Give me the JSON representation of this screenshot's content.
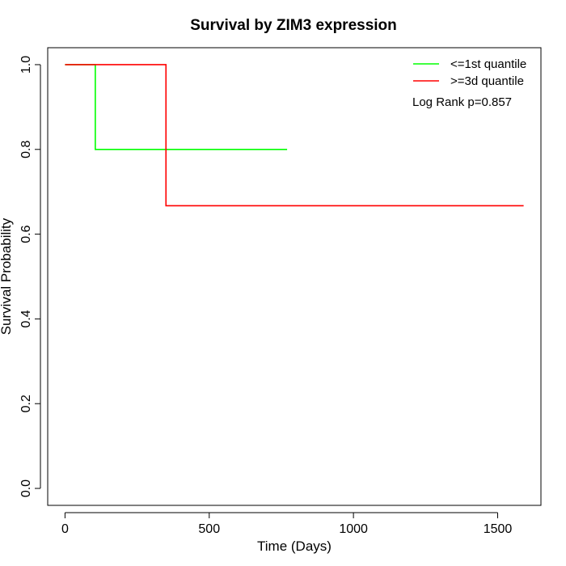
{
  "chart_data": {
    "type": "line",
    "title": "Survival by ZIM3 expression",
    "xlabel": "Time (Days)",
    "ylabel": "Survival Probability",
    "xlim": [
      -60,
      1650
    ],
    "ylim": [
      -0.04,
      1.04
    ],
    "x_ticks": [
      0,
      500,
      1000,
      1500
    ],
    "x_tick_labels": [
      "0",
      "500",
      "1000",
      "1500"
    ],
    "y_ticks": [
      0.0,
      0.2,
      0.4,
      0.6,
      0.8,
      1.0
    ],
    "y_tick_labels": [
      "0.0",
      "0.2",
      "0.4",
      "0.6",
      "0.8",
      "1.0"
    ],
    "grid": false,
    "legend_position": "top-right",
    "series": [
      {
        "name": "<=1st quantile",
        "color": "#00ff00",
        "steps": [
          [
            0,
            1.0
          ],
          [
            105,
            0.8
          ],
          [
            770,
            0.8
          ]
        ]
      },
      {
        "name": ">=3d quantile",
        "color": "#ff0000",
        "steps": [
          [
            0,
            1.0
          ],
          [
            350,
            0.667
          ],
          [
            1590,
            0.667
          ]
        ]
      }
    ],
    "annotation": "Log Rank p=0.857"
  }
}
